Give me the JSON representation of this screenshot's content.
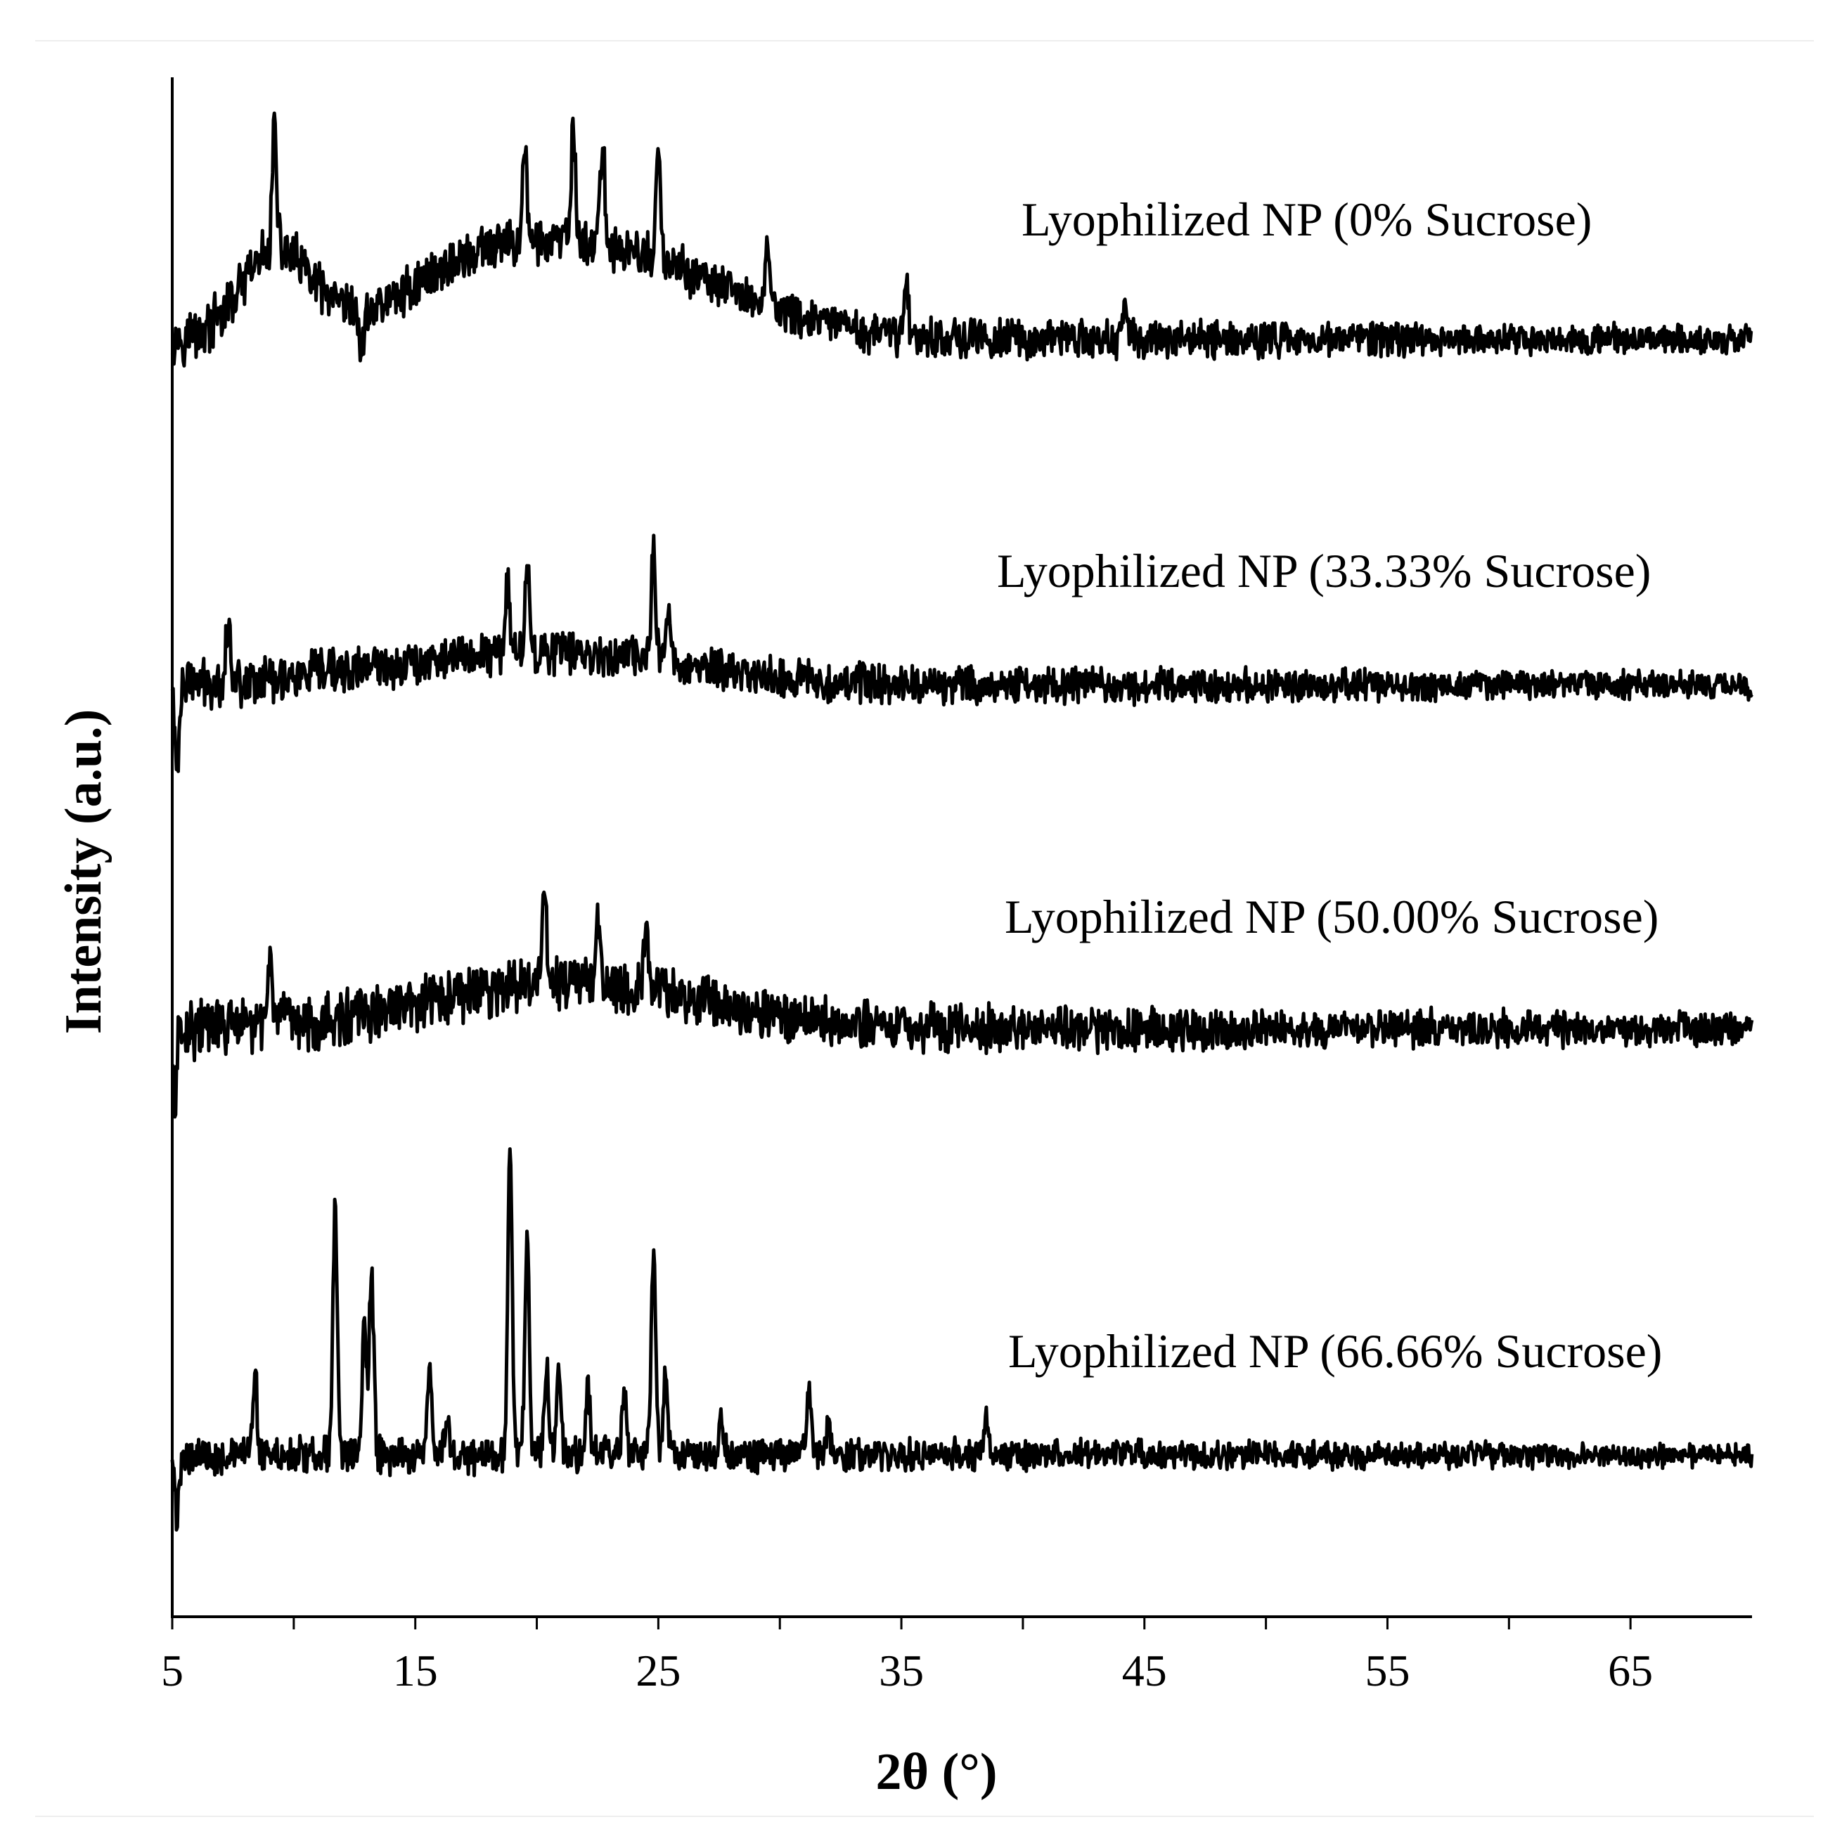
{
  "chart_data": {
    "type": "line",
    "title": "",
    "xlabel": "2θ (°)",
    "ylabel": "Intensity (a.u.)",
    "xlim": [
      5,
      70
    ],
    "xticks": [
      5,
      15,
      25,
      35,
      45,
      55,
      65
    ],
    "ylim": [
      0,
      100
    ],
    "y_tick_labels": false,
    "grid": false,
    "legend": "none (series labeled inline above each trace)",
    "series": [
      {
        "name": "Lyophilized NP (0% Sucrose)",
        "baseline": 83,
        "noise": 1.4,
        "humps": [
          {
            "center": 9.3,
            "width": 1.4,
            "height": 5.5
          },
          {
            "center": 22.0,
            "width": 5.2,
            "height": 6.0
          },
          {
            "center": 17.0,
            "width": 2.5,
            "height": 1.5
          }
        ],
        "peaks": [
          {
            "x": 9.2,
            "y": 8.0
          },
          {
            "x": 12.8,
            "y": -3.0
          },
          {
            "x": 19.5,
            "y": 6.5
          },
          {
            "x": 21.5,
            "y": 7.5
          },
          {
            "x": 22.7,
            "y": 7.0
          },
          {
            "x": 25.0,
            "y": 7.0
          },
          {
            "x": 29.5,
            "y": 4.5
          },
          {
            "x": 35.2,
            "y": 3.5
          },
          {
            "x": 44.2,
            "y": 2.5
          }
        ]
      },
      {
        "name": "Lyophilized NP (33.33% Sucrose)",
        "baseline": 60.5,
        "noise": 1.3,
        "humps": [
          {
            "center": 20.0,
            "width": 6.0,
            "height": 2.2
          }
        ],
        "peaks": [
          {
            "x": 7.3,
            "y": 4.0
          },
          {
            "x": 18.8,
            "y": 5.0
          },
          {
            "x": 19.6,
            "y": 5.5
          },
          {
            "x": 24.8,
            "y": 7.5
          },
          {
            "x": 25.4,
            "y": 3.5
          },
          {
            "x": 5.2,
            "y": -5.5
          }
        ]
      },
      {
        "name": "Lyophilized NP (50.00% Sucrose)",
        "baseline": 38.2,
        "noise": 1.6,
        "humps": [
          {
            "center": 21.5,
            "width": 5.5,
            "height": 3.0
          }
        ],
        "peaks": [
          {
            "x": 9.0,
            "y": 5.0
          },
          {
            "x": 20.3,
            "y": 6.0
          },
          {
            "x": 22.5,
            "y": 4.5
          },
          {
            "x": 24.5,
            "y": 3.5
          },
          {
            "x": 5.1,
            "y": -4.5
          }
        ]
      },
      {
        "name": "Lyophilized NP (66.66% Sucrose)",
        "baseline": 10.5,
        "noise": 1.1,
        "humps": [],
        "peaks": [
          {
            "x": 8.4,
            "y": 5.0
          },
          {
            "x": 11.7,
            "y": 16.0
          },
          {
            "x": 12.9,
            "y": 8.5
          },
          {
            "x": 13.2,
            "y": 12.0
          },
          {
            "x": 15.6,
            "y": 5.5
          },
          {
            "x": 16.3,
            "y": 2.5
          },
          {
            "x": 18.9,
            "y": 20.0
          },
          {
            "x": 19.6,
            "y": 14.0
          },
          {
            "x": 20.4,
            "y": 6.0
          },
          {
            "x": 20.9,
            "y": 6.5
          },
          {
            "x": 22.1,
            "y": 4.5
          },
          {
            "x": 23.6,
            "y": 4.0
          },
          {
            "x": 24.8,
            "y": 13.0
          },
          {
            "x": 25.3,
            "y": 5.0
          },
          {
            "x": 27.6,
            "y": 2.5
          },
          {
            "x": 31.2,
            "y": 4.0
          },
          {
            "x": 32.0,
            "y": 2.0
          },
          {
            "x": 38.5,
            "y": 2.5
          },
          {
            "x": 5.2,
            "y": -4.0
          }
        ]
      }
    ]
  }
}
